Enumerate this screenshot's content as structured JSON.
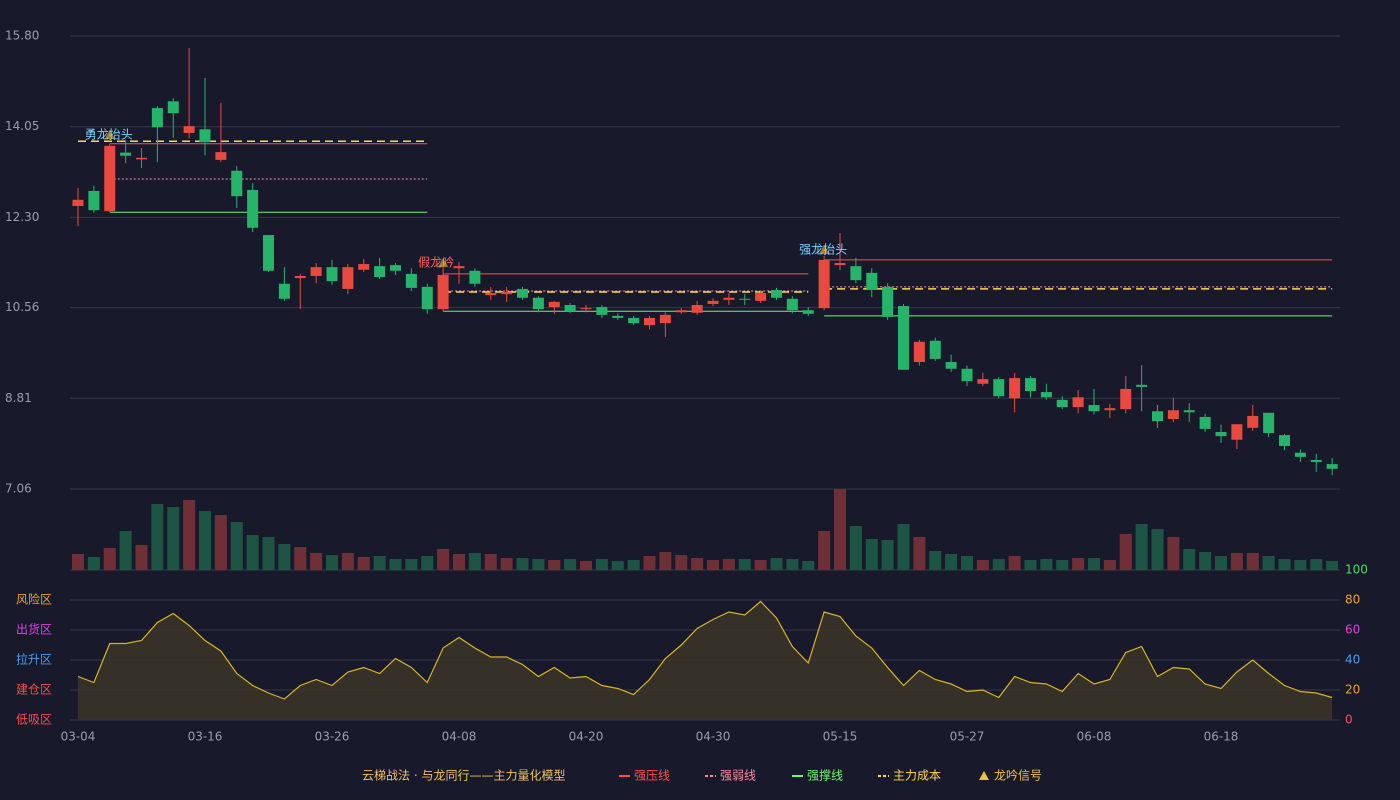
{
  "chart_data": {
    "type": "candlestick",
    "categories": [
      "03-04",
      null,
      null,
      null,
      null,
      null,
      null,
      null,
      "03-16",
      null,
      null,
      null,
      null,
      null,
      null,
      null,
      "03-26",
      null,
      null,
      null,
      null,
      null,
      null,
      null,
      "04-08",
      null,
      null,
      null,
      null,
      null,
      null,
      null,
      "04-20",
      null,
      null,
      null,
      null,
      null,
      null,
      null,
      "04-30",
      null,
      null,
      null,
      null,
      null,
      null,
      null,
      "05-15",
      null,
      null,
      null,
      null,
      null,
      null,
      null,
      "05-27",
      null,
      null,
      null,
      null,
      null,
      null,
      null,
      "06-08",
      null,
      null,
      null,
      null,
      null,
      null,
      null,
      "06-18",
      null,
      null,
      null,
      null,
      null,
      null,
      null
    ],
    "open": [
      12.52,
      12.81,
      12.42,
      13.55,
      13.42,
      14.41,
      14.54,
      13.93,
      14.0,
      13.41,
      13.2,
      12.83,
      11.96,
      11.02,
      11.13,
      11.17,
      11.34,
      10.92,
      11.29,
      11.36,
      11.38,
      11.21,
      10.96,
      10.53,
      11.32,
      11.27,
      10.8,
      10.82,
      10.92,
      10.75,
      10.57,
      10.61,
      10.53,
      10.57,
      10.4,
      10.36,
      10.22,
      10.26,
      10.47,
      10.46,
      10.63,
      10.71,
      10.73,
      10.69,
      10.9,
      10.73,
      10.51,
      10.55,
      11.38,
      11.36,
      11.23,
      10.96,
      10.59,
      9.51,
      9.92,
      9.51,
      9.38,
      9.09,
      9.18,
      8.81,
      9.2,
      8.93,
      8.78,
      8.64,
      8.68,
      8.58,
      8.6,
      9.07,
      8.56,
      8.41,
      8.58,
      8.45,
      8.16,
      8.01,
      8.24,
      8.53,
      8.1,
      7.76,
      7.62,
      7.54
    ],
    "high": [
      12.87,
      12.91,
      13.72,
      13.8,
      13.64,
      14.45,
      14.6,
      15.57,
      14.99,
      14.51,
      13.29,
      12.96,
      11.96,
      11.34,
      11.21,
      11.42,
      11.48,
      11.4,
      11.5,
      11.52,
      11.42,
      11.32,
      11.02,
      11.36,
      11.44,
      11.32,
      10.96,
      10.96,
      10.96,
      10.78,
      10.69,
      10.65,
      10.61,
      10.61,
      10.45,
      10.4,
      10.4,
      10.47,
      10.55,
      10.69,
      10.74,
      10.84,
      10.82,
      10.88,
      10.94,
      10.78,
      10.57,
      11.56,
      12.0,
      11.52,
      11.32,
      11.03,
      10.63,
      9.94,
      9.98,
      9.65,
      9.44,
      9.3,
      9.22,
      9.3,
      9.24,
      9.09,
      8.85,
      8.97,
      8.99,
      8.7,
      9.24,
      9.45,
      8.68,
      8.82,
      8.72,
      8.51,
      8.3,
      8.31,
      8.68,
      8.53,
      8.12,
      7.82,
      7.74,
      7.66
    ],
    "low": [
      12.13,
      12.39,
      12.4,
      13.35,
      13.25,
      13.37,
      13.83,
      13.83,
      13.5,
      13.37,
      12.48,
      12.02,
      11.25,
      10.69,
      10.53,
      11.03,
      11.0,
      10.82,
      11.25,
      11.11,
      11.19,
      10.88,
      10.44,
      10.49,
      11.02,
      10.96,
      10.71,
      10.67,
      10.71,
      10.47,
      10.44,
      10.45,
      10.47,
      10.36,
      10.32,
      10.22,
      10.14,
      9.99,
      10.44,
      10.42,
      10.59,
      10.61,
      10.61,
      10.65,
      10.71,
      10.45,
      10.4,
      10.51,
      11.29,
      11.03,
      10.76,
      10.32,
      9.36,
      9.44,
      9.53,
      9.32,
      9.05,
      9.05,
      8.81,
      8.54,
      8.83,
      8.78,
      8.6,
      8.52,
      8.5,
      8.43,
      8.52,
      8.56,
      8.24,
      8.35,
      8.35,
      8.16,
      7.95,
      7.83,
      8.18,
      8.06,
      7.81,
      7.58,
      7.39,
      7.33
    ],
    "close": [
      12.64,
      12.44,
      13.68,
      13.49,
      13.45,
      14.04,
      14.31,
      14.06,
      13.75,
      13.56,
      12.71,
      12.1,
      11.27,
      10.73,
      11.17,
      11.34,
      11.07,
      11.34,
      11.4,
      11.15,
      11.27,
      10.94,
      10.53,
      11.19,
      11.36,
      11.02,
      10.84,
      10.86,
      10.75,
      10.53,
      10.67,
      10.49,
      10.55,
      10.42,
      10.36,
      10.26,
      10.36,
      10.42,
      10.51,
      10.61,
      10.69,
      10.75,
      10.71,
      10.84,
      10.75,
      10.51,
      10.44,
      11.48,
      11.42,
      11.09,
      10.9,
      10.38,
      9.36,
      9.9,
      9.57,
      9.38,
      9.14,
      9.18,
      8.85,
      9.2,
      8.95,
      8.83,
      8.64,
      8.83,
      8.56,
      8.62,
      8.99,
      9.03,
      8.37,
      8.58,
      8.54,
      8.22,
      8.08,
      8.31,
      8.47,
      8.14,
      7.89,
      7.68,
      7.58,
      7.45
    ],
    "volume": [
      16,
      13,
      22,
      39,
      25,
      66,
      63,
      70,
      59,
      55,
      48,
      35,
      33,
      26,
      23,
      17,
      15,
      17,
      13,
      14,
      11,
      11,
      14,
      21,
      16,
      17,
      16,
      12,
      12,
      11,
      10,
      11,
      9,
      11,
      9,
      10,
      14,
      18,
      15,
      12,
      10,
      11,
      11,
      10,
      12,
      11,
      9,
      39,
      81,
      44,
      31,
      30,
      46,
      33,
      19,
      16,
      14,
      10,
      11,
      14,
      10,
      11,
      10,
      12,
      12,
      10,
      36,
      46,
      41,
      33,
      21,
      18,
      14,
      17,
      17,
      14,
      11,
      10,
      11,
      9
    ],
    "indicator": {
      "color": "#d9b421",
      "fill": "#3b3528",
      "axis": "y2",
      "values": [
        29,
        25,
        51,
        51,
        53,
        65,
        71,
        63,
        53,
        46,
        31,
        23,
        18,
        14,
        23,
        27,
        23,
        32,
        35,
        31,
        41,
        35,
        25,
        48,
        55,
        48,
        42,
        42,
        37,
        29,
        35,
        28,
        29,
        23,
        21,
        17,
        27,
        41,
        50,
        61,
        67,
        72,
        70,
        79,
        68,
        49,
        38,
        72,
        69,
        56,
        48,
        35,
        23,
        33,
        27,
        24,
        19,
        20,
        15,
        29,
        25,
        24,
        19,
        31,
        24,
        27,
        45,
        49,
        29,
        35,
        34,
        24,
        21,
        32,
        40,
        31,
        23,
        19,
        18,
        15
      ]
    },
    "up_color": "#e84a3f",
    "down_color": "#26b36a",
    "volume_up_color": "#6e2f37",
    "volume_down_color": "#1e5444",
    "ylim": [
      7.06,
      15.8
    ],
    "yticks": [
      {
        "value": 15.8,
        "label": "15.80"
      },
      14.05,
      {
        "value": 12.3,
        "label": "12.30"
      },
      10.56,
      8.81,
      7.06
    ],
    "y2lim": [
      0,
      100
    ],
    "y2ticks": [
      0,
      20,
      40,
      60,
      80,
      100
    ],
    "y2tick_colors": [
      "#ff4d4d",
      "#f0a030",
      "#4a9cf0",
      "#e040e0",
      "#f0a030",
      "#4cd964"
    ],
    "zones": [
      {
        "label": "风险区",
        "value": 80,
        "color": "#f0a030"
      },
      {
        "label": "出货区",
        "value": 60,
        "color": "#e040e0"
      },
      {
        "label": "拉升区",
        "value": 40,
        "color": "#4a9cf0"
      },
      {
        "label": "建仓区",
        "value": 20,
        "color": "#f05050"
      },
      {
        "label": "低吸区",
        "value": 0,
        "color": "#f05050"
      }
    ],
    "grid": true,
    "level_lines": [
      {
        "name": "强压线",
        "color": "#ff4d4d",
        "dash": "solid",
        "segments": [
          {
            "from": 2,
            "to": 22,
            "value": 13.72
          },
          {
            "from": 23,
            "to": 46,
            "value": 11.21
          },
          {
            "from": 47,
            "to": 79,
            "value": 11.48
          }
        ]
      },
      {
        "name": "强弱线",
        "color": "#ff8aa0",
        "dash": "dotted",
        "segments": [
          {
            "from": 2,
            "to": 22,
            "value": 13.04
          },
          {
            "from": 23,
            "to": 46,
            "value": 10.88
          },
          {
            "from": 47,
            "to": 79,
            "value": 10.96
          }
        ]
      },
      {
        "name": "强撑线",
        "color": "#6ff56f",
        "dash": "solid",
        "segments": [
          {
            "from": 2,
            "to": 22,
            "value": 12.4
          },
          {
            "from": 23,
            "to": 46,
            "value": 10.49
          },
          {
            "from": 47,
            "to": 79,
            "value": 10.4
          }
        ]
      },
      {
        "name": "主力成本",
        "color": "#ffd84d",
        "dash": "dashed",
        "segments": [
          {
            "from": 0,
            "to": 22,
            "value": 13.77
          },
          {
            "from": 23,
            "to": 46,
            "value": 10.86
          },
          {
            "from": 47,
            "to": 79,
            "value": 10.92
          }
        ]
      }
    ],
    "signals": {
      "name": "龙吟信号",
      "color": "#f0c040",
      "points": [
        {
          "index": 2,
          "value": 13.89,
          "label": "勇龙抬头",
          "color": "#7fd0ff"
        },
        {
          "index": 23,
          "value": 11.42,
          "label": "假龙吟",
          "color": "#ff6060"
        },
        {
          "index": 47,
          "value": 11.67,
          "label": "强龙抬头",
          "color": "#7fd0ff"
        }
      ]
    },
    "model": {
      "text": "云梯战法 · 与龙同行——主力量化模型",
      "color": "#f0c060"
    }
  }
}
